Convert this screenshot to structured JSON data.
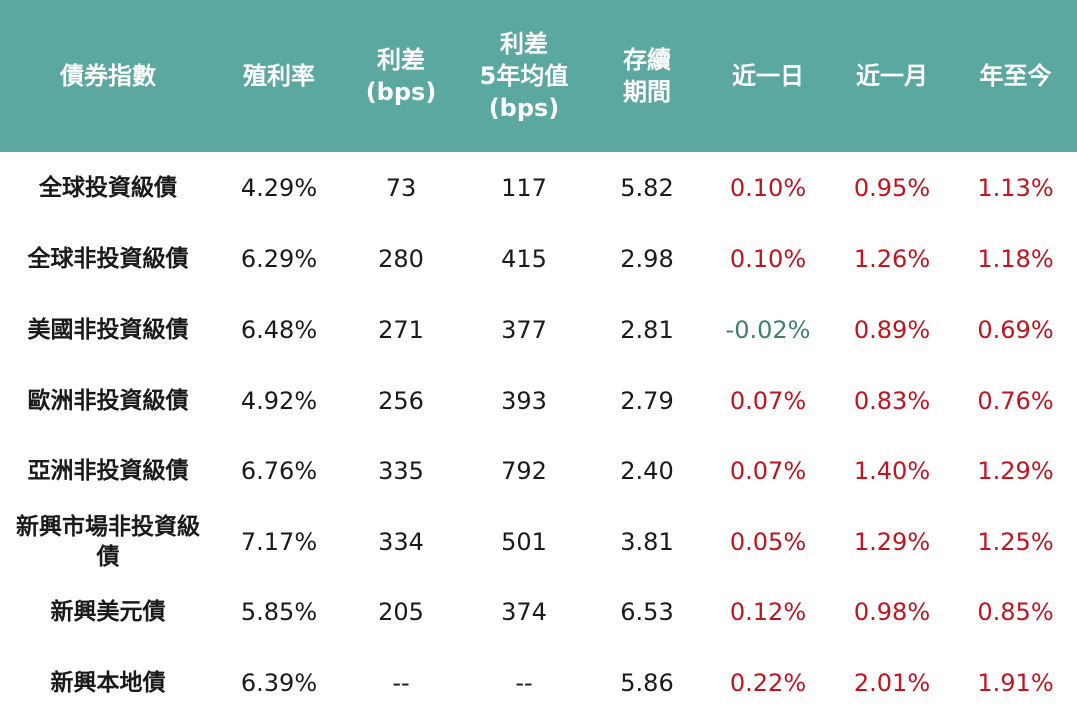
{
  "table": {
    "headers": [
      "債券指數",
      "殖利率",
      "利差\n(bps)",
      "利差\n5年均值\n(bps)",
      "存續\n期間",
      "近一日",
      "近一月",
      "年至今"
    ],
    "rows": [
      {
        "name": "全球投資級債",
        "yield": "4.29%",
        "spread": "73",
        "spread_5y": "117",
        "duration": "5.82",
        "d1": "0.10%",
        "m1": "0.95%",
        "ytd": "1.13%"
      },
      {
        "name": "全球非投資級債",
        "yield": "6.29%",
        "spread": "280",
        "spread_5y": "415",
        "duration": "2.98",
        "d1": "0.10%",
        "m1": "1.26%",
        "ytd": "1.18%"
      },
      {
        "name": "美國非投資級債",
        "yield": "6.48%",
        "spread": "271",
        "spread_5y": "377",
        "duration": "2.81",
        "d1": "-0.02%",
        "m1": "0.89%",
        "ytd": "0.69%"
      },
      {
        "name": "歐洲非投資級債",
        "yield": "4.92%",
        "spread": "256",
        "spread_5y": "393",
        "duration": "2.79",
        "d1": "0.07%",
        "m1": "0.83%",
        "ytd": "0.76%"
      },
      {
        "name": "亞洲非投資級債",
        "yield": "6.76%",
        "spread": "335",
        "spread_5y": "792",
        "duration": "2.40",
        "d1": "0.07%",
        "m1": "1.40%",
        "ytd": "1.29%"
      },
      {
        "name": "新興市場非投資級債",
        "yield": "7.17%",
        "spread": "334",
        "spread_5y": "501",
        "duration": "3.81",
        "d1": "0.05%",
        "m1": "1.29%",
        "ytd": "1.25%"
      },
      {
        "name": "新興美元債",
        "yield": "5.85%",
        "spread": "205",
        "spread_5y": "374",
        "duration": "6.53",
        "d1": "0.12%",
        "m1": "0.98%",
        "ytd": "0.85%"
      },
      {
        "name": "新興本地債",
        "yield": "6.39%",
        "spread": "--",
        "spread_5y": "--",
        "duration": "5.86",
        "d1": "0.22%",
        "m1": "2.01%",
        "ytd": "1.91%"
      }
    ]
  },
  "colors": {
    "header_bg": "#5ba8a0",
    "header_text": "#ffffff",
    "positive": "#c0141e",
    "negative": "#3f7f72",
    "neutral": "#1a1a1a"
  }
}
